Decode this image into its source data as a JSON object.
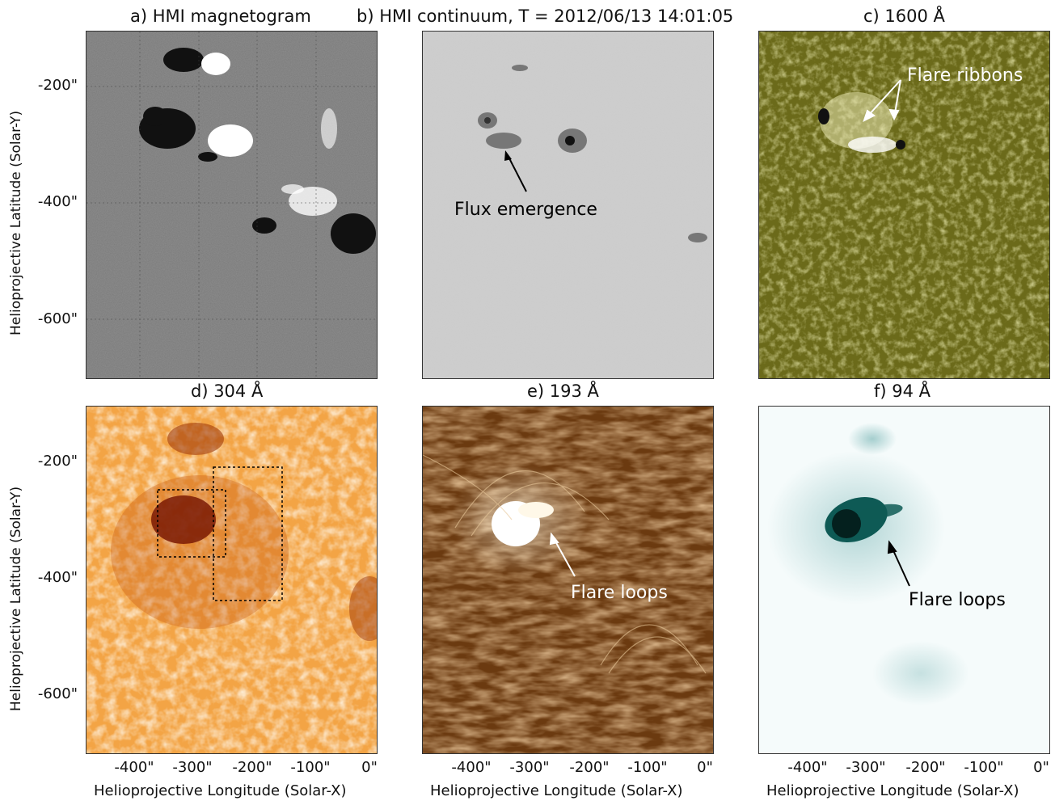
{
  "titles": {
    "a": "a) HMI magnetogram",
    "b": "b) HMI continuum, T = 2012/06/13 14:01:05",
    "c": "c) 1600 Å",
    "d": "d) 304 Å",
    "e": "e) 193 Å",
    "f": "f) 94 Å"
  },
  "axes": {
    "ylabel": "Helioprojective Latitude (Solar-Y)",
    "xlabel": "Helioprojective Longitude (Solar-X)",
    "yticks": [
      "-200\"",
      "-400\"",
      "-600\""
    ],
    "xticks": [
      "-400\"",
      "-300\"",
      "-200\"",
      "-100\"",
      "0\""
    ]
  },
  "annotations": {
    "flux_emergence": "Flux emergence",
    "flare_ribbons": "Flare ribbons",
    "flare_loops_e": "Flare loops",
    "flare_loops_f": "Flare loops"
  },
  "colors": {
    "magnetogram_bg": "#7a7a7a",
    "continuum_bg": "#c8c8c8",
    "aia1600_bg": "#6b6a1a",
    "aia304_bg": "#f2a040",
    "aia193_bg": "#6b3a10",
    "aia94_bg": "#f4fbfb"
  }
}
